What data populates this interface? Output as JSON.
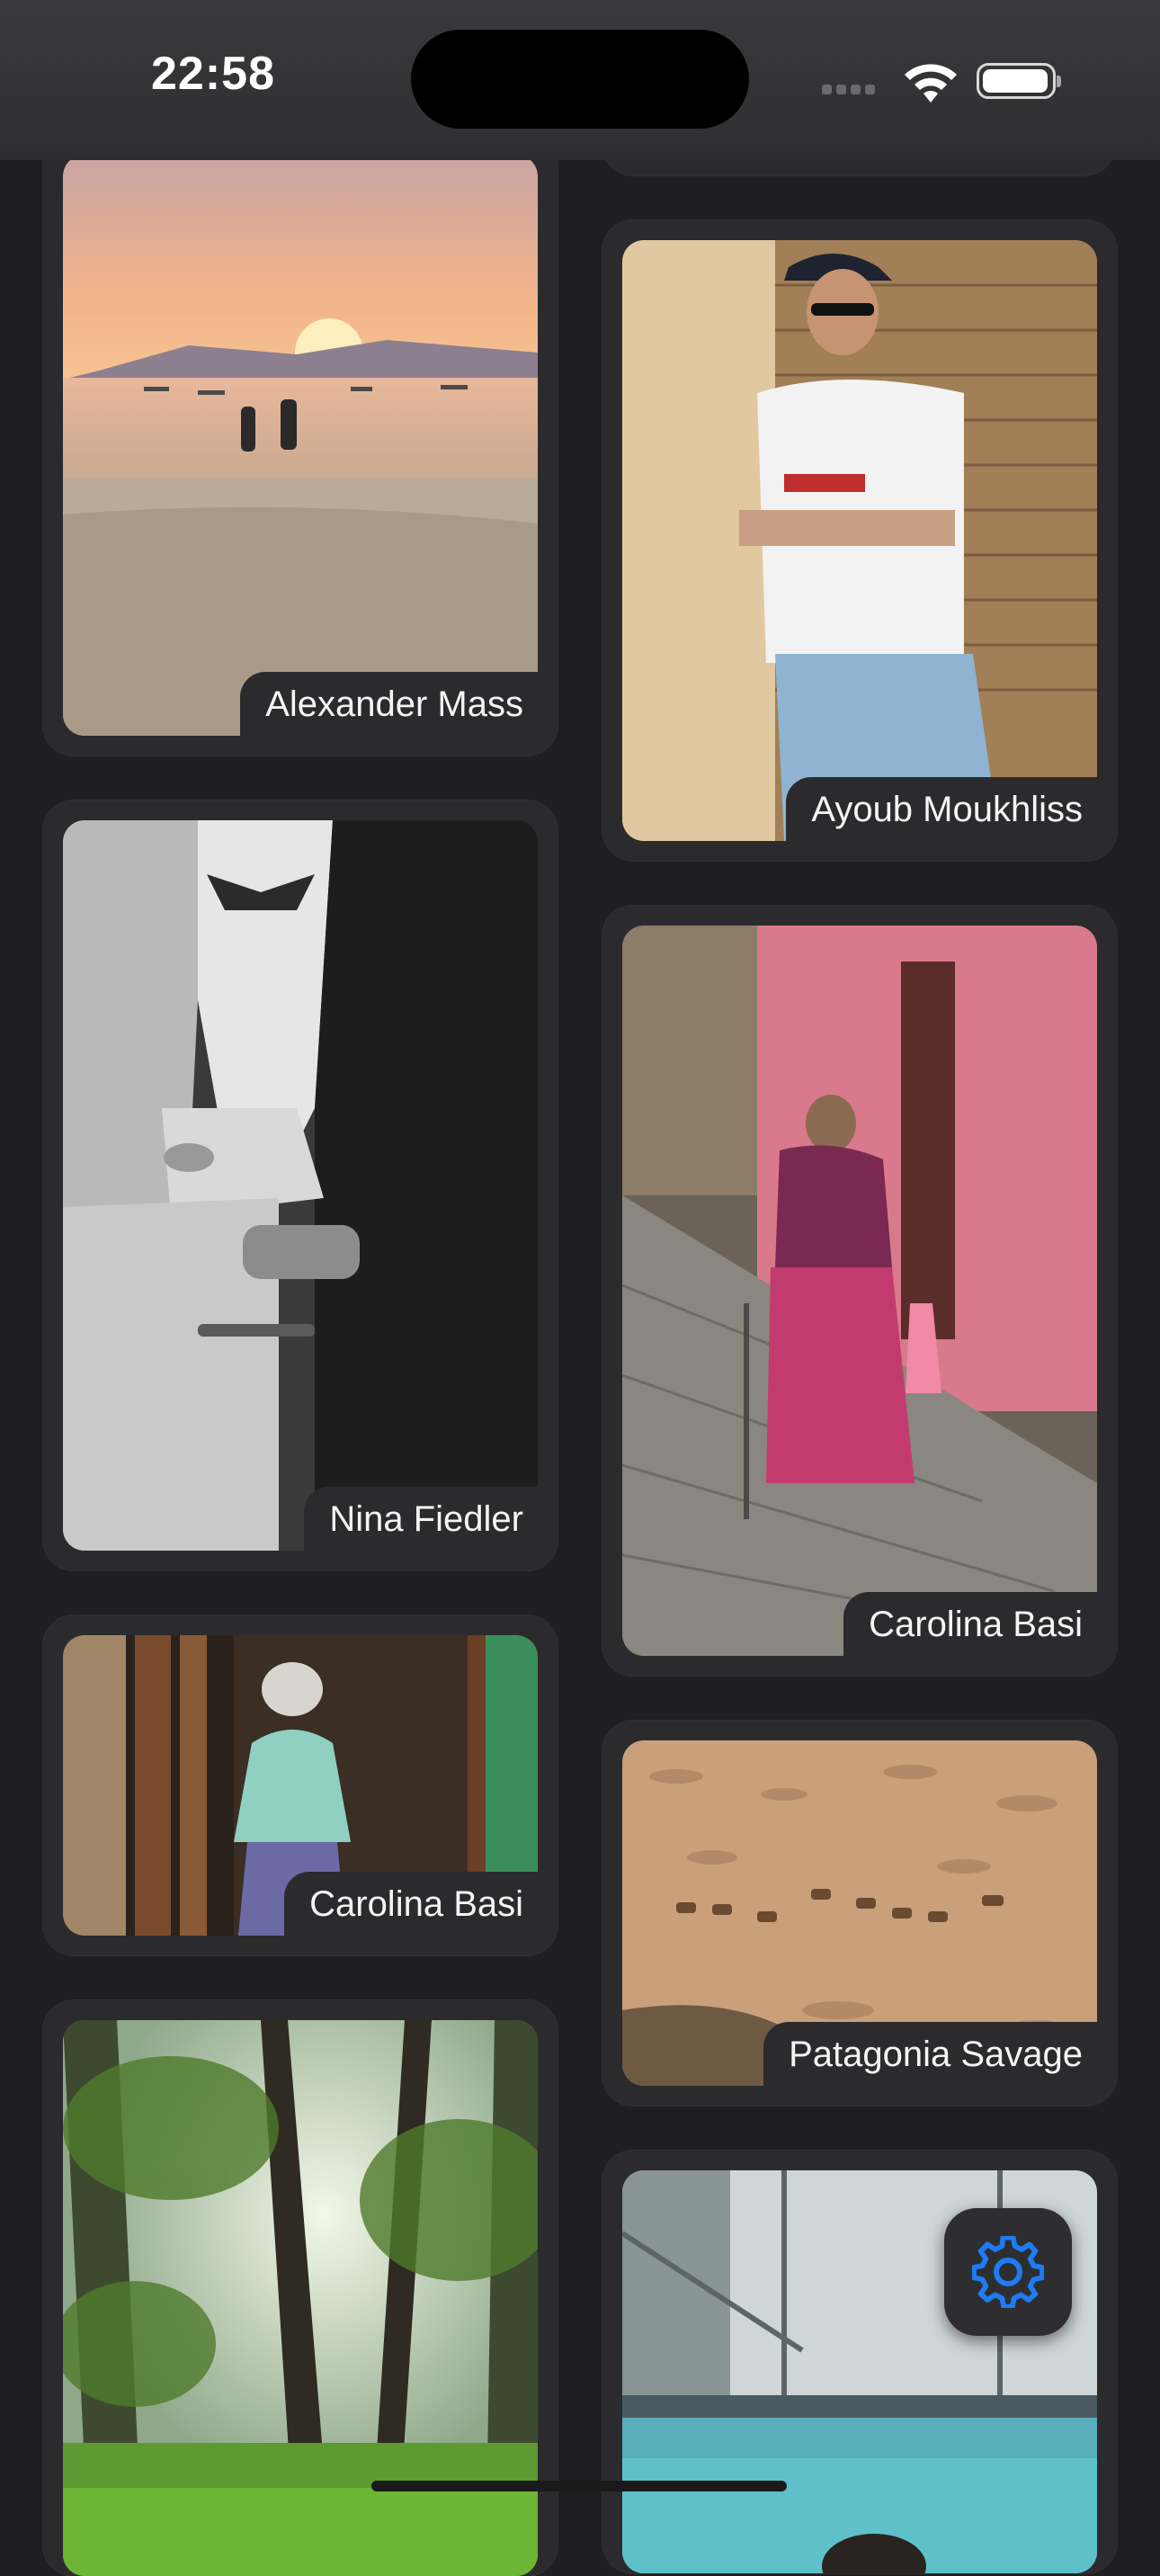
{
  "status_bar": {
    "time": "22:58"
  },
  "gallery": {
    "cards": [
      {
        "id": "sunset-beach",
        "photographer": "Alexander Mass",
        "photo_subject": "couple walking on beach at sunset"
      },
      {
        "id": "street-style",
        "photographer": "Ayoub Moukhliss",
        "photo_subject": "man in cap and white jersey leaning on wall"
      },
      {
        "id": "suit-bw",
        "photographer": "Nina Fiedler",
        "photo_subject": "black and white man adjusting suit cuff"
      },
      {
        "id": "pink-street",
        "photographer": "Carolina Basi",
        "photo_subject": "elderly woman with cane on cobblestone street"
      },
      {
        "id": "doorway-portrait",
        "photographer": "Carolina Basi",
        "photo_subject": "elderly woman standing in wooden doorway"
      },
      {
        "id": "deer-field",
        "photographer": "Patagonia Savage",
        "photo_subject": "deer grazing in golden field"
      },
      {
        "id": "forest-trees",
        "photographer": "",
        "photo_subject": "sunlit forest with green grass"
      },
      {
        "id": "seal-pool",
        "photographer": "",
        "photo_subject": "seal in aquarium pool"
      }
    ]
  },
  "settings_button": {
    "icon": "gear-icon",
    "accent_color": "#1e7cf2"
  },
  "colors": {
    "background": "#1f1f21",
    "card": "#2b2b2e",
    "caption_text": "#f4f4f4"
  }
}
